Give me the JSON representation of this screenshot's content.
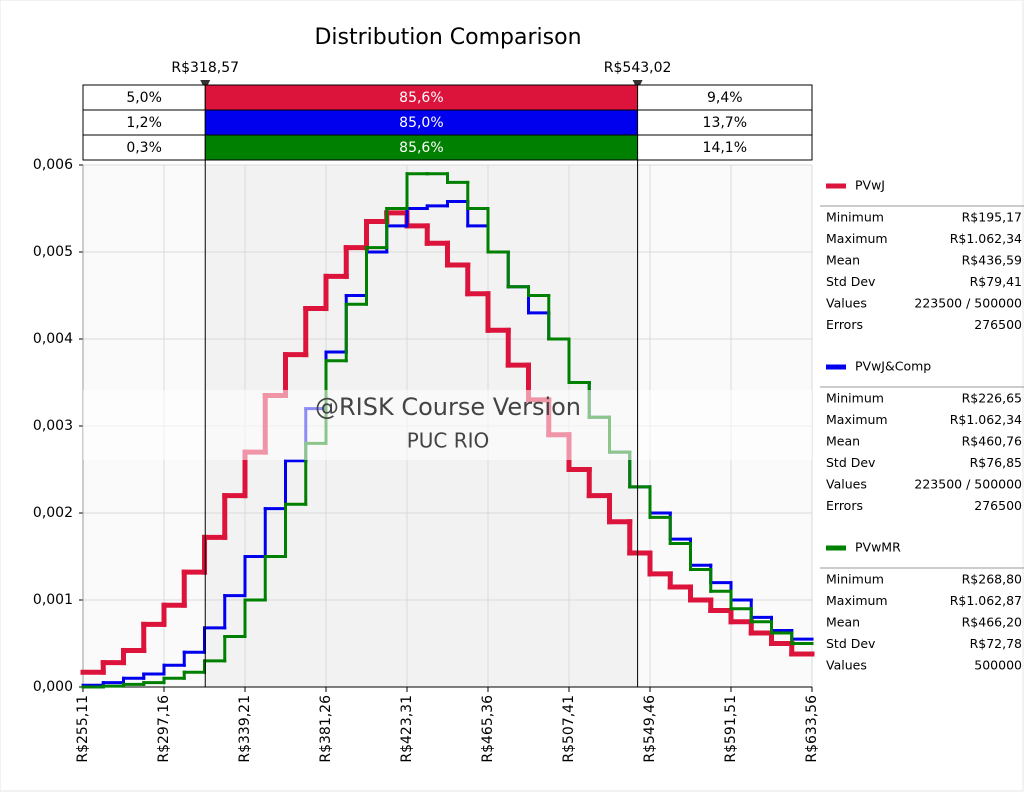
{
  "chart_data": {
    "type": "step-histogram",
    "title": "Distribution Comparison",
    "watermark": [
      "@RISK Course Version",
      "PUC RIO"
    ],
    "xlim": [
      255.11,
      633.56
    ],
    "xticks": [
      {
        "value": 255.11,
        "label": "R$255,11"
      },
      {
        "value": 297.16,
        "label": "R$297,16"
      },
      {
        "value": 339.21,
        "label": "R$339,21"
      },
      {
        "value": 381.26,
        "label": "R$381,26"
      },
      {
        "value": 423.31,
        "label": "R$423,31"
      },
      {
        "value": 465.36,
        "label": "R$465,36"
      },
      {
        "value": 507.41,
        "label": "R$507,41"
      },
      {
        "value": 549.46,
        "label": "R$549,46"
      },
      {
        "value": 591.51,
        "label": "R$591,51"
      },
      {
        "value": 633.56,
        "label": "R$633,56"
      }
    ],
    "ylim": [
      0,
      0.006
    ],
    "yticks": [
      {
        "value": 0,
        "label": "0,000"
      },
      {
        "value": 0.001,
        "label": "0,001"
      },
      {
        "value": 0.002,
        "label": "0,002"
      },
      {
        "value": 0.003,
        "label": "0,003"
      },
      {
        "value": 0.004,
        "label": "0,004"
      },
      {
        "value": 0.005,
        "label": "0,005"
      },
      {
        "value": 0.006,
        "label": "0,006"
      }
    ],
    "grid": true,
    "delimiters": [
      {
        "value": 318.57,
        "label": "R$318,57"
      },
      {
        "value": 543.02,
        "label": "R$543,02"
      }
    ],
    "bins": [
      255.11,
      265.62,
      276.14,
      286.65,
      297.16,
      307.67,
      318.19,
      328.7,
      339.21,
      349.72,
      360.24,
      370.75,
      381.26,
      391.77,
      402.29,
      412.8,
      423.31,
      433.82,
      444.34,
      454.85,
      465.36,
      475.87,
      486.39,
      496.9,
      507.41,
      517.92,
      528.44,
      538.95,
      549.46,
      559.97,
      570.49,
      581.0,
      591.51,
      602.02,
      612.54,
      623.05,
      633.56
    ],
    "series": [
      {
        "name": "PVwJ",
        "color": "#dc143c",
        "width": 5,
        "band": [
          "5,0%",
          "85,6%",
          "9,4%"
        ],
        "stats": [
          [
            "Minimum",
            "R$195,17"
          ],
          [
            "Maximum",
            "R$1.062,34"
          ],
          [
            "Mean",
            "R$436,59"
          ],
          [
            "Std Dev",
            "R$79,41"
          ],
          [
            "Values",
            "223500 / 500000"
          ],
          [
            "Errors",
            "276500"
          ]
        ],
        "values": [
          0.00017,
          0.00028,
          0.00042,
          0.00072,
          0.00094,
          0.00132,
          0.00172,
          0.0022,
          0.0027,
          0.00335,
          0.00382,
          0.00435,
          0.00472,
          0.00505,
          0.00535,
          0.00545,
          0.0053,
          0.0051,
          0.00485,
          0.00452,
          0.0041,
          0.0037,
          0.0033,
          0.0029,
          0.0025,
          0.0022,
          0.0019,
          0.00154,
          0.0013,
          0.00115,
          0.001,
          0.00088,
          0.00075,
          0.00062,
          0.0005,
          0.00038
        ]
      },
      {
        "name": "PVwJ&Comp",
        "color": "#0000ee",
        "width": 3,
        "band": [
          "1,2%",
          "85,0%",
          "13,7%"
        ],
        "stats": [
          [
            "Minimum",
            "R$226,65"
          ],
          [
            "Maximum",
            "R$1.062,34"
          ],
          [
            "Mean",
            "R$460,76"
          ],
          [
            "Std Dev",
            "R$76,85"
          ],
          [
            "Values",
            "223500 / 500000"
          ],
          [
            "Errors",
            "276500"
          ]
        ],
        "values": [
          2e-05,
          5e-05,
          0.0001,
          0.00015,
          0.00025,
          0.0004,
          0.00068,
          0.00105,
          0.0015,
          0.00205,
          0.0026,
          0.0032,
          0.00385,
          0.0045,
          0.005,
          0.0053,
          0.0055,
          0.00553,
          0.00558,
          0.0053,
          0.005,
          0.0046,
          0.0043,
          0.004,
          0.0035,
          0.0031,
          0.0027,
          0.0023,
          0.002,
          0.0017,
          0.0014,
          0.0012,
          0.001,
          0.0008,
          0.00065,
          0.00055
        ]
      },
      {
        "name": "PVwMR",
        "color": "#008000",
        "width": 3,
        "band": [
          "0,3%",
          "85,6%",
          "14,1%"
        ],
        "stats": [
          [
            "Minimum",
            "R$268,80"
          ],
          [
            "Maximum",
            "R$1.062,87"
          ],
          [
            "Mean",
            "R$466,20"
          ],
          [
            "Std Dev",
            "R$72,78"
          ],
          [
            "Values",
            "500000"
          ]
        ],
        "values": [
          0,
          1e-05,
          3e-05,
          5e-05,
          0.0001,
          0.00017,
          0.0003,
          0.00058,
          0.001,
          0.0015,
          0.0021,
          0.0028,
          0.00375,
          0.0044,
          0.00505,
          0.0055,
          0.0059,
          0.0059,
          0.0058,
          0.0055,
          0.005,
          0.0046,
          0.0045,
          0.004,
          0.0035,
          0.0031,
          0.0027,
          0.0023,
          0.00195,
          0.00165,
          0.00135,
          0.0011,
          0.0009,
          0.00075,
          0.00062,
          0.0005
        ]
      }
    ]
  }
}
